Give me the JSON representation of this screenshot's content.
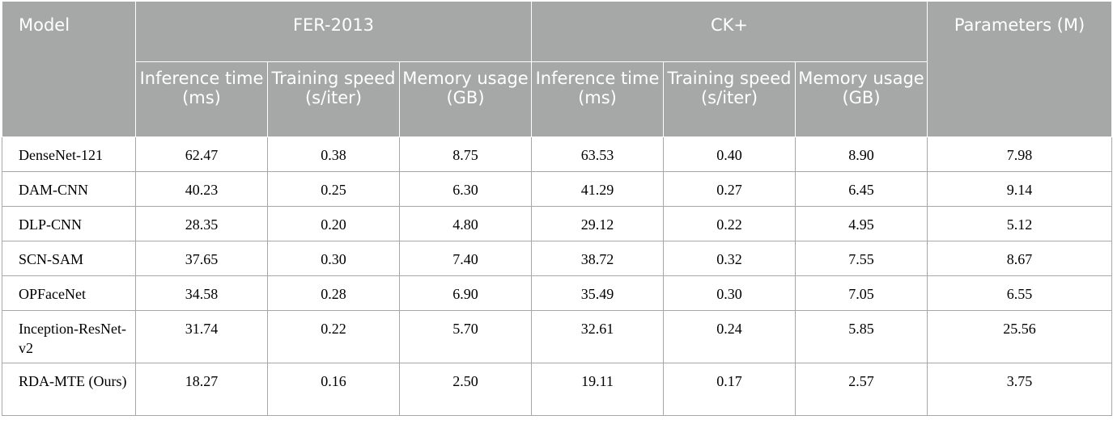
{
  "header": {
    "model": "Model",
    "group1": "FER-2013",
    "group2": "CK+",
    "params": "Parameters (M)",
    "sub": [
      "Inference time (ms)",
      "Training speed (s/iter)",
      "Memory usage (GB)",
      "Inference time (ms)",
      "Training speed (s/iter)",
      "Memory usage (GB)"
    ]
  },
  "rows": [
    {
      "name": "DenseNet-121",
      "values": [
        "62.47",
        "0.38",
        "8.75",
        "63.53",
        "0.40",
        "8.90",
        "7.98"
      ]
    },
    {
      "name": "DAM-CNN",
      "values": [
        "40.23",
        "0.25",
        "6.30",
        "41.29",
        "0.27",
        "6.45",
        "9.14"
      ]
    },
    {
      "name": "DLP-CNN",
      "values": [
        "28.35",
        "0.20",
        "4.80",
        "29.12",
        "0.22",
        "4.95",
        "5.12"
      ]
    },
    {
      "name": "SCN-SAM",
      "values": [
        "37.65",
        "0.30",
        "7.40",
        "38.72",
        "0.32",
        "7.55",
        "8.67"
      ]
    },
    {
      "name": "OPFaceNet",
      "values": [
        "34.58",
        "0.28",
        "6.90",
        "35.49",
        "0.30",
        "7.05",
        "6.55"
      ]
    },
    {
      "name": "Inception-ResNet-v2",
      "values": [
        "31.74",
        "0.22",
        "5.70",
        "32.61",
        "0.24",
        "5.85",
        "25.56"
      ]
    },
    {
      "name": "RDA-MTE (Ours)",
      "values": [
        "18.27",
        "0.16",
        "2.50",
        "19.11",
        "0.17",
        "2.57",
        "3.75"
      ]
    }
  ]
}
